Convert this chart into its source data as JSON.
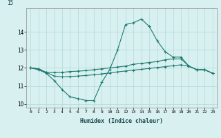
{
  "xlabel": "Humidex (Indice chaleur)",
  "x": [
    0,
    1,
    2,
    3,
    4,
    5,
    6,
    7,
    8,
    9,
    10,
    11,
    12,
    13,
    14,
    15,
    16,
    17,
    18,
    19,
    20,
    21,
    22,
    23
  ],
  "line1": [
    12.0,
    11.9,
    11.7,
    11.3,
    10.8,
    10.4,
    10.3,
    10.2,
    10.2,
    11.2,
    11.9,
    13.0,
    14.4,
    14.5,
    14.7,
    14.3,
    13.5,
    12.9,
    12.6,
    12.6,
    12.1,
    11.9,
    11.9,
    11.7
  ],
  "line2": [
    12.0,
    11.95,
    11.75,
    11.75,
    11.75,
    11.8,
    11.82,
    11.85,
    11.9,
    11.95,
    12.0,
    12.05,
    12.1,
    12.2,
    12.25,
    12.3,
    12.35,
    12.45,
    12.5,
    12.5,
    12.1,
    11.9,
    11.9,
    11.7
  ],
  "line3": [
    12.0,
    11.95,
    11.75,
    11.55,
    11.5,
    11.52,
    11.55,
    11.58,
    11.62,
    11.67,
    11.72,
    11.78,
    11.83,
    11.88,
    11.92,
    11.97,
    12.02,
    12.07,
    12.12,
    12.17,
    12.1,
    11.9,
    11.9,
    11.7
  ],
  "line_color": "#1a7a6e",
  "bg_color": "#d8f0f0",
  "grid_color": "#b0d8d8",
  "ylim": [
    9.8,
    15.3
  ],
  "yticks": [
    10,
    11,
    12,
    13,
    14
  ],
  "xticks": [
    0,
    1,
    2,
    3,
    4,
    5,
    6,
    7,
    8,
    9,
    10,
    11,
    12,
    13,
    14,
    15,
    16,
    17,
    18,
    19,
    20,
    21,
    22,
    23
  ]
}
